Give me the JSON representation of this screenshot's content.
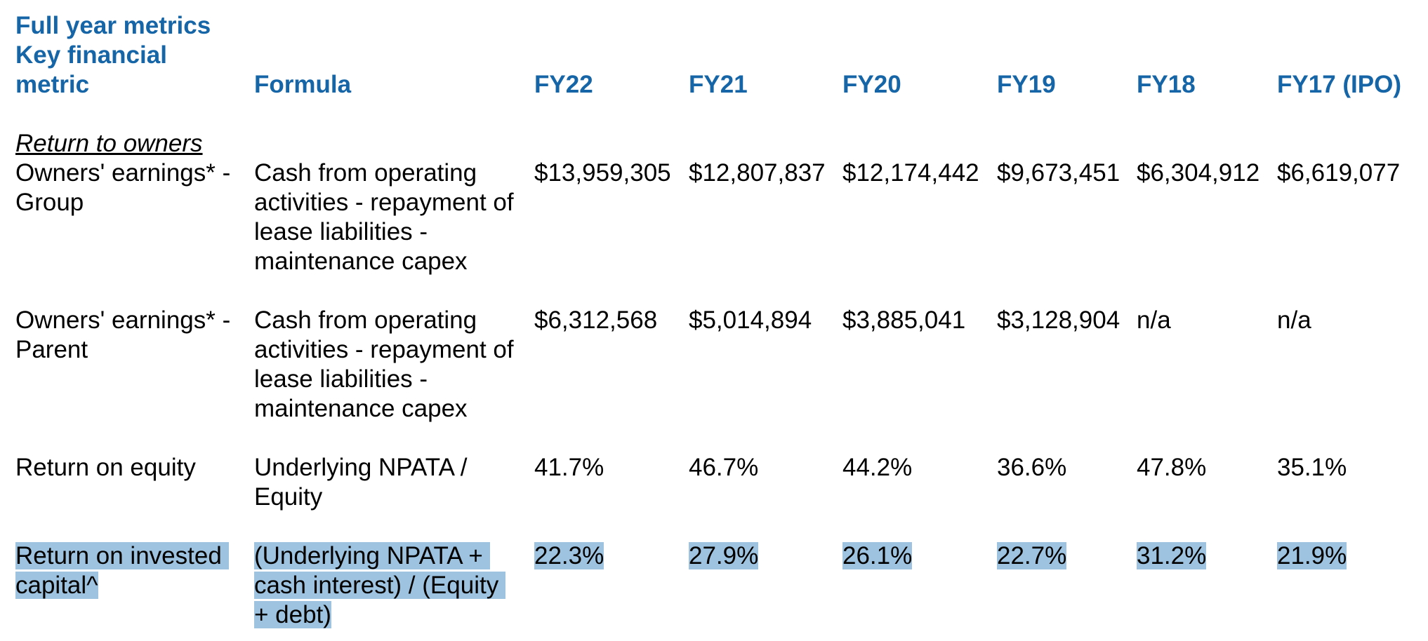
{
  "header": {
    "title_line1": "Full year metrics",
    "title_line2": "Key financial",
    "title_line3": "metric",
    "formula": "Formula",
    "years": [
      "FY22",
      "FY21",
      "FY20",
      "FY19",
      "FY18",
      "FY17 (IPO)"
    ]
  },
  "section_title": "Return to owners",
  "rows": [
    {
      "metric_lines": [
        "Owners' earnings* -",
        "Group"
      ],
      "formula_lines": [
        "Cash from operating",
        "activities - repayment of",
        "lease liabilities -",
        "maintenance capex"
      ],
      "values": [
        "$13,959,305",
        "$12,807,837",
        "$12,174,442",
        "$9,673,451",
        "$6,304,912",
        "$6,619,077"
      ]
    },
    {
      "metric_lines": [
        "Owners' earnings* -",
        "Parent"
      ],
      "formula_lines": [
        "Cash from operating",
        "activities - repayment of",
        "lease liabilities -",
        "maintenance capex"
      ],
      "values": [
        "$6,312,568",
        "$5,014,894",
        "$3,885,041",
        "$3,128,904",
        "n/a",
        "n/a"
      ]
    },
    {
      "metric_lines": [
        "Return on equity"
      ],
      "formula_lines": [
        "Underlying NPATA /",
        "Equity"
      ],
      "values": [
        "41.7%",
        "46.7%",
        "44.2%",
        "36.6%",
        "47.8%",
        "35.1%"
      ]
    },
    {
      "metric_lines": [
        "Return on invested",
        "capital^"
      ],
      "formula_lines": [
        "(Underlying NPATA +",
        "cash interest) / (Equity",
        "+ debt)"
      ],
      "values": [
        "22.3%",
        "27.9%",
        "26.1%",
        "22.7%",
        "31.2%",
        "21.9%"
      ]
    }
  ],
  "colors": {
    "header_blue": "#1565a7",
    "selection_highlight": "#9ec3e0"
  }
}
